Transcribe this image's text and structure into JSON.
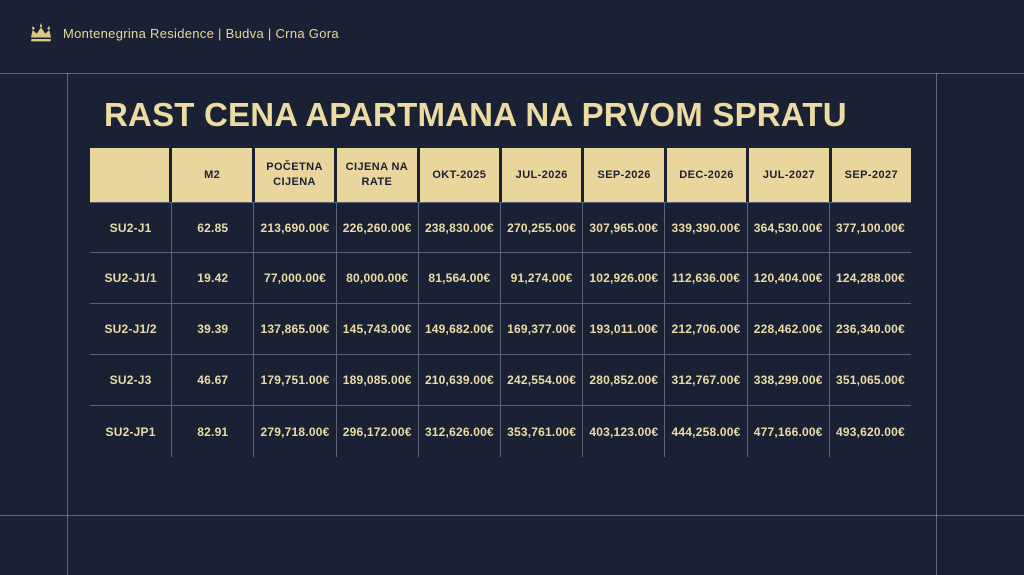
{
  "brand": {
    "icon": "crown-icon",
    "text": "Montenegrina Residence | Budva | Crna Gora"
  },
  "title": "RAST CENA APARTMANA NA PRVOM SPRATU",
  "colors": {
    "background": "#1A2134",
    "header_fill": "#E8D69C",
    "text_cream": "#EADCA6",
    "grid_line": "rgba(215,221,233,0.35)"
  },
  "table": {
    "columns": [
      "",
      "M2",
      "POČETNA CIJENA",
      "CIJENA NA RATE",
      "OKT-2025",
      "JUL-2026",
      "SEP-2026",
      "DEC-2026",
      "JUL-2027",
      "SEP-2027"
    ],
    "rows": [
      [
        "SU2-J1",
        "62.85",
        "213,690.00€",
        "226,260.00€",
        "238,830.00€",
        "270,255.00€",
        "307,965.00€",
        "339,390.00€",
        "364,530.00€",
        "377,100.00€"
      ],
      [
        "SU2-J1/1",
        "19.42",
        "77,000.00€",
        "80,000.00€",
        "81,564.00€",
        "91,274.00€",
        "102,926.00€",
        "112,636.00€",
        "120,404.00€",
        "124,288.00€"
      ],
      [
        "SU2-J1/2",
        "39.39",
        "137,865.00€",
        "145,743.00€",
        "149,682.00€",
        "169,377.00€",
        "193,011.00€",
        "212,706.00€",
        "228,462.00€",
        "236,340.00€"
      ],
      [
        "SU2-J3",
        "46.67",
        "179,751.00€",
        "189,085.00€",
        "210,639.00€",
        "242,554.00€",
        "280,852.00€",
        "312,767.00€",
        "338,299.00€",
        "351,065.00€"
      ],
      [
        "SU2-JP1",
        "82.91",
        "279,718.00€",
        "296,172.00€",
        "312,626.00€",
        "353,761.00€",
        "403,123.00€",
        "444,258.00€",
        "477,166.00€",
        "493,620.00€"
      ]
    ]
  }
}
